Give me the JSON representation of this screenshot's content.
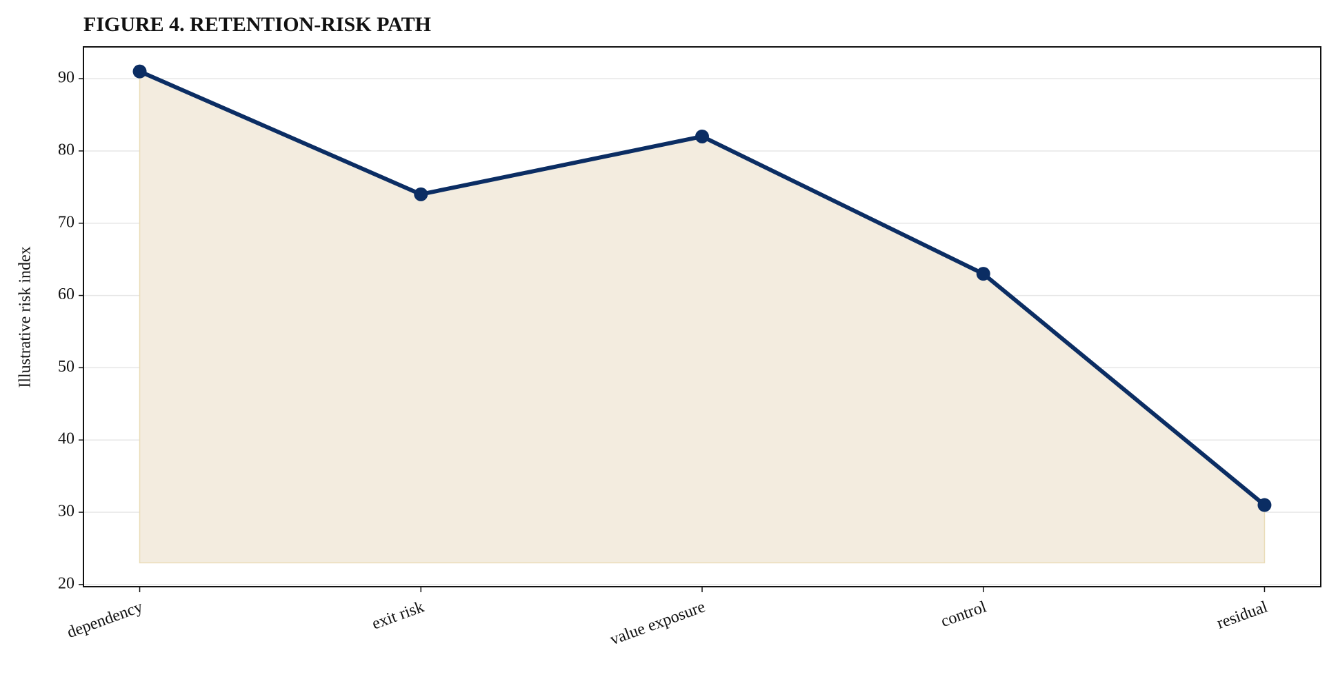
{
  "chart_data": {
    "type": "line",
    "title": "FIGURE 4. RETENTION-RISK PATH",
    "y_label": "Illustrative risk index",
    "categories": [
      "dependency",
      "exit risk",
      "value exposure",
      "control",
      "residual"
    ],
    "values": [
      91,
      74,
      82,
      63,
      31
    ],
    "color": "#0b2d63",
    "area": true,
    "area_base": 23,
    "area_color": "#f3ecdf",
    "ylim": [
      19.7,
      94.4
    ],
    "yticks": [
      20,
      30,
      40,
      50,
      60,
      70,
      80,
      90
    ],
    "grid": true
  }
}
